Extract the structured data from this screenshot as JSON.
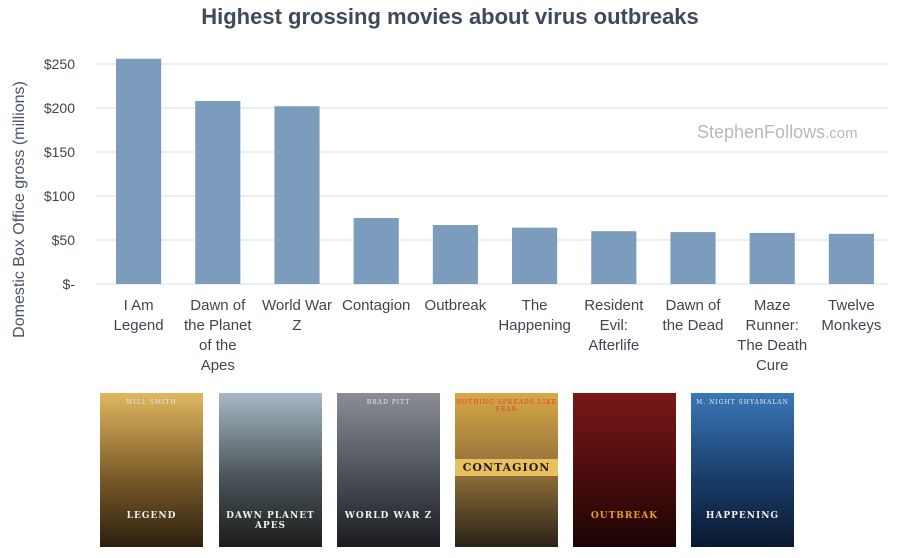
{
  "chart_data": {
    "type": "bar",
    "title": "Highest grossing movies about virus outbreaks",
    "ylabel": "Domestic Box Office gross (millions)",
    "xlabel": "",
    "ylim": [
      0,
      250
    ],
    "yticks": [
      {
        "value": 0,
        "label": "$-"
      },
      {
        "value": 50,
        "label": "$50"
      },
      {
        "value": 100,
        "label": "$100"
      },
      {
        "value": 150,
        "label": "$150"
      },
      {
        "value": 200,
        "label": "$200"
      },
      {
        "value": 250,
        "label": "$250"
      }
    ],
    "categories": [
      [
        "I Am",
        "Legend"
      ],
      [
        "Dawn of",
        "the Planet",
        "of the",
        "Apes"
      ],
      [
        "World War",
        "Z"
      ],
      [
        "Contagion"
      ],
      [
        "Outbreak"
      ],
      [
        "The",
        "Happening"
      ],
      [
        "Resident",
        "Evil:",
        "Afterlife"
      ],
      [
        "Dawn of",
        "the Dead"
      ],
      [
        "Maze",
        "Runner:",
        "The Death",
        "Cure"
      ],
      [
        "Twelve",
        "Monkeys"
      ]
    ],
    "values": [
      256,
      208,
      202,
      75,
      67,
      64,
      60,
      59,
      58,
      57
    ],
    "grid": true,
    "legend": "none",
    "bar_color": "#7b9cbc"
  },
  "watermark": {
    "main": "StephenFollows",
    "suffix": ".com"
  },
  "posters": [
    {
      "name": "i-am-legend-poster",
      "top_text": "WILL SMITH",
      "bottom_text": "LEGEND",
      "colors": [
        "#e0b860",
        "#7a5a28",
        "#2c2010"
      ]
    },
    {
      "name": "dawn-of-the-planet-of-the-apes-poster",
      "top_text": "",
      "bottom_text": "DAWN PLANET APES",
      "colors": [
        "#a8b8c4",
        "#4a5458",
        "#1c1c1c"
      ]
    },
    {
      "name": "world-war-z-poster",
      "top_text": "BRAD PITT",
      "bottom_text": "WORLD WAR Z",
      "colors": [
        "#8a8e94",
        "#4a4e56",
        "#1a1c20"
      ]
    },
    {
      "name": "contagion-poster",
      "top_text": "NOTHING SPREADS LIKE FEAR",
      "bottom_text": "CONTAGION",
      "colors": [
        "#d8a848",
        "#8a6a38",
        "#2a2418"
      ]
    },
    {
      "name": "outbreak-poster",
      "top_text": "",
      "bottom_text": "OUTBREAK",
      "colors": [
        "#7a1818",
        "#4a0c0c",
        "#1a0404"
      ]
    },
    {
      "name": "the-happening-poster",
      "top_text": "M. NIGHT SHYAMALAN",
      "bottom_text": "HAPPENING",
      "colors": [
        "#3a78b8",
        "#1a3c6a",
        "#0a1830"
      ]
    }
  ]
}
